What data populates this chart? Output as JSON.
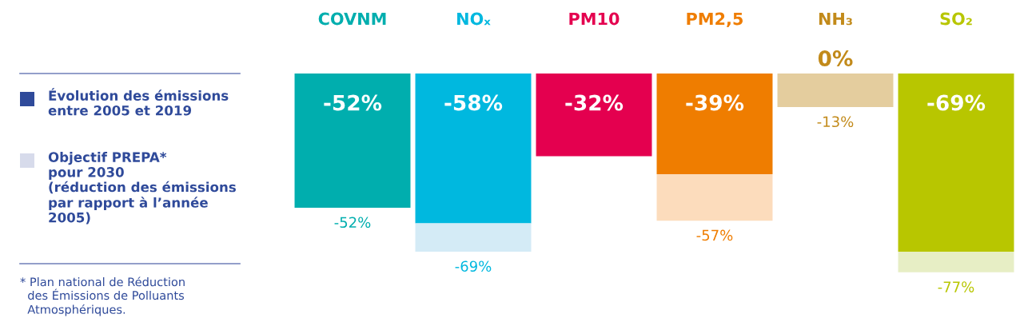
{
  "chart_data": {
    "type": "bar",
    "stacked": true,
    "categories": [
      "COVNM",
      "NOₓ",
      "PM10",
      "PM2,5",
      "NH₃",
      "SO₂"
    ],
    "series": [
      {
        "colors": [
          "#00aeae",
          "#00b8df",
          "#e4004f",
          "#ef7d00",
          "#c28a1a",
          "#b8c600"
        ],
        "values": [
          -52,
          -58,
          -32,
          -39,
          0,
          -69
        ],
        "value_labels": [
          "-52%",
          "-58%",
          "-32%",
          "-39%",
          "0%",
          "-69%"
        ]
      },
      {
        "colors": [
          "#d4ebf6",
          "#d4ebf6",
          "#fcdcbc",
          "#fcdcbc",
          "#e4cd9e",
          "#e7eec5"
        ],
        "values": [
          0,
          -11,
          null,
          -18,
          -13,
          -8
        ]
      }
    ],
    "totals": [
      "-52%",
      "-69%",
      null,
      "-57%",
      "-13%",
      "-77%"
    ],
    "annotations": [
      "Évolution des émissions\nentre 2005 et 2019",
      "Objectif PREPA*\npour 2030\n(réduction des émissions\npar rapport à l’année\n2005)",
      "* Plan national de Réduction\n  des Émissions de Polluants\n  Atmosphériques."
    ]
  }
}
